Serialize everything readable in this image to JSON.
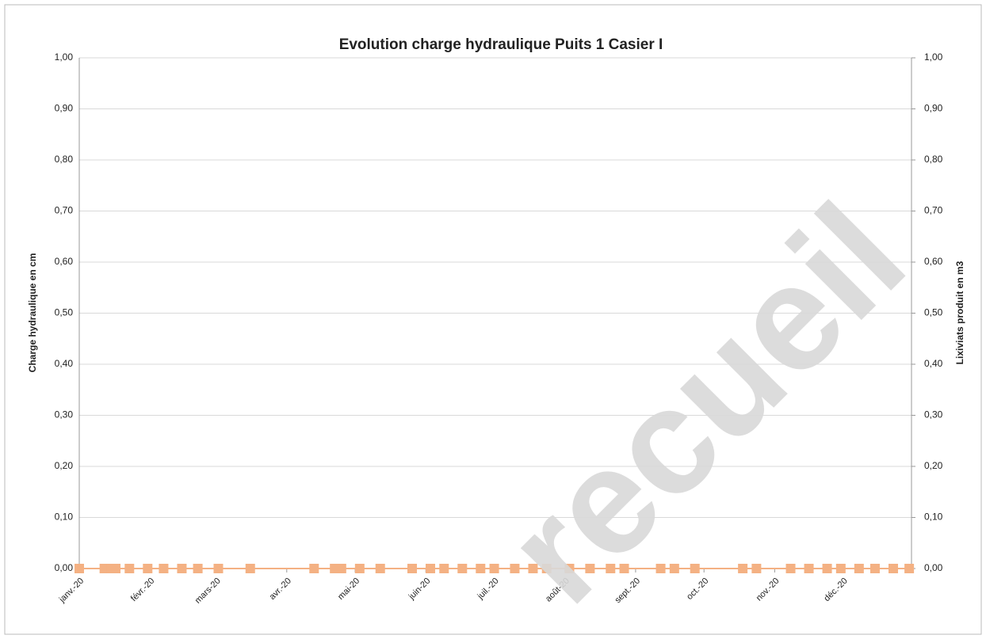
{
  "chart_data": {
    "type": "line",
    "title": "Evolution charge hydraulique Puits 1 Casier I",
    "ylabel": "Charge hydraulique en cm",
    "y2label": "Lixiviats produit en m3",
    "watermark": "recueil",
    "xlim": [
      1,
      366
    ],
    "xticks": [
      {
        "value": 1,
        "label": "janv.-20"
      },
      {
        "value": 32,
        "label": "févr.-20"
      },
      {
        "value": 61,
        "label": "mars-20"
      },
      {
        "value": 92,
        "label": "avr.-20"
      },
      {
        "value": 122,
        "label": "mai-20"
      },
      {
        "value": 153,
        "label": "juin-20"
      },
      {
        "value": 183,
        "label": "juil.-20"
      },
      {
        "value": 214,
        "label": "août-20"
      },
      {
        "value": 245,
        "label": "sept.-20"
      },
      {
        "value": 275,
        "label": "oct.-20"
      },
      {
        "value": 306,
        "label": "nov.-20"
      },
      {
        "value": 336,
        "label": "déc.-20"
      }
    ],
    "ylim": [
      0,
      1
    ],
    "yticks": [
      {
        "value": 0,
        "label": "0,00"
      },
      {
        "value": 0.1,
        "label": "0,10"
      },
      {
        "value": 0.2,
        "label": "0,20"
      },
      {
        "value": 0.3,
        "label": "0,30"
      },
      {
        "value": 0.4,
        "label": "0,40"
      },
      {
        "value": 0.5,
        "label": "0,50"
      },
      {
        "value": 0.6,
        "label": "0,60"
      },
      {
        "value": 0.7,
        "label": "0,70"
      },
      {
        "value": 0.8,
        "label": "0,80"
      },
      {
        "value": 0.9,
        "label": "0,90"
      },
      {
        "value": 1,
        "label": "1,00"
      }
    ],
    "y2lim": [
      0,
      1
    ],
    "y2ticks": [
      {
        "value": 0,
        "label": "0,00"
      },
      {
        "value": 0.1,
        "label": "0,10"
      },
      {
        "value": 0.2,
        "label": "0,20"
      },
      {
        "value": 0.3,
        "label": "0,30"
      },
      {
        "value": 0.4,
        "label": "0,40"
      },
      {
        "value": 0.5,
        "label": "0,50"
      },
      {
        "value": 0.6,
        "label": "0,60"
      },
      {
        "value": 0.7,
        "label": "0,70"
      },
      {
        "value": 0.8,
        "label": "0,80"
      },
      {
        "value": 0.9,
        "label": "0,90"
      },
      {
        "value": 1,
        "label": "1,00"
      }
    ],
    "grid": true,
    "series": [
      {
        "color": "#f4b183",
        "axis": "y2",
        "x": [
          1,
          12,
          15,
          17,
          23,
          31,
          38,
          46,
          53,
          62,
          76,
          104,
          113,
          116,
          124,
          133,
          147,
          155,
          161,
          169,
          177,
          183,
          192,
          200,
          206,
          216,
          225,
          234,
          240,
          256,
          262,
          271,
          292,
          298,
          313,
          321,
          329,
          335,
          343,
          350,
          358,
          365
        ],
        "values": [
          0,
          0,
          0,
          0,
          0,
          0,
          0,
          0,
          0,
          0,
          0,
          0,
          0,
          0,
          0,
          0,
          0,
          0,
          0,
          0,
          0,
          0,
          0,
          0,
          0,
          0,
          0,
          0,
          0,
          0,
          0,
          0,
          0,
          0,
          0,
          0,
          0,
          0,
          0,
          0,
          0,
          0
        ]
      }
    ]
  }
}
